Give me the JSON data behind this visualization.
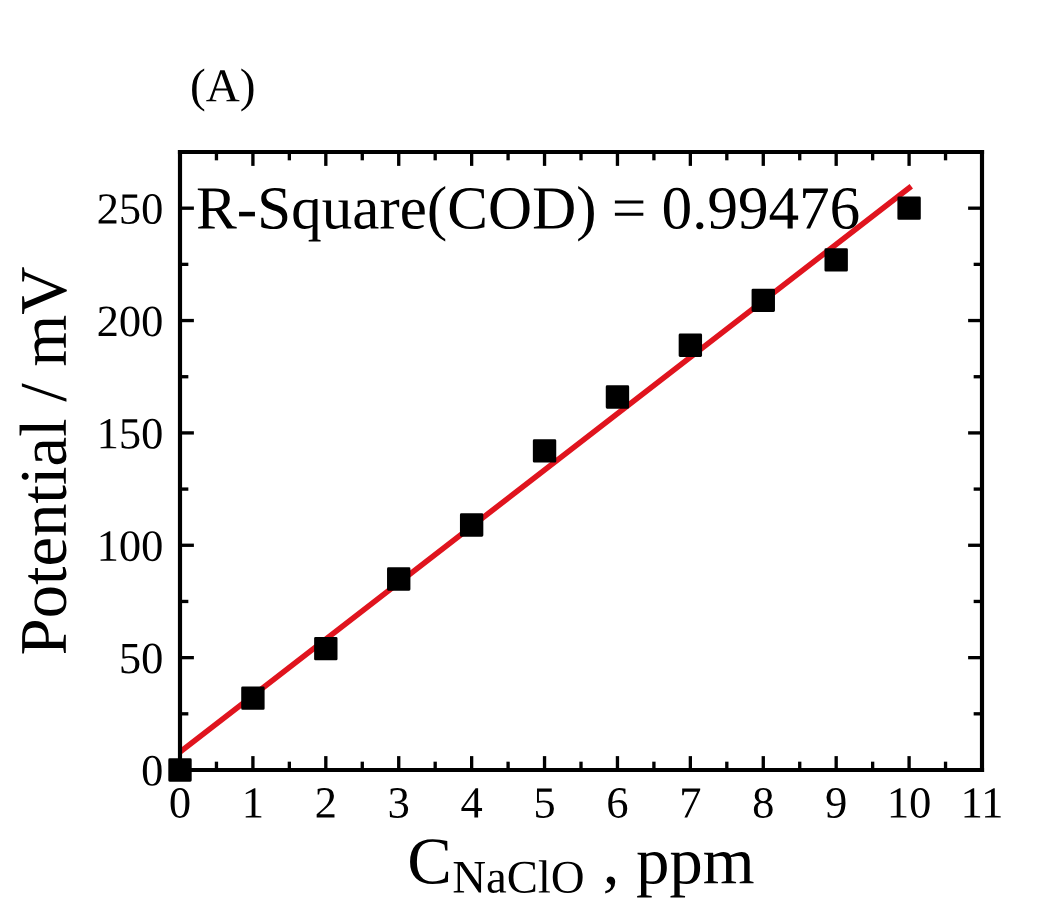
{
  "chart_data": {
    "type": "scatter",
    "title": "(A)",
    "xlabel": "C$_{NaClO}$ , ppm",
    "ylabel": "Potential / mV",
    "annotations": [
      "R-Square(COD) = 0.99476"
    ],
    "x": [
      0,
      1,
      2,
      3,
      4,
      5,
      6,
      7,
      8,
      9,
      10
    ],
    "series": [
      {
        "color": "#000000",
        "marker": "square",
        "values": [
          0,
          32,
          54,
          85,
          109,
          142,
          166,
          189,
          209,
          227,
          250
        ]
      },
      {
        "type": "line",
        "color": "#e0141e",
        "marker": "none",
        "line_style": "solid",
        "x": [
          0,
          10
        ],
        "values": [
          8,
          259
        ]
      }
    ],
    "xlim": [
      0,
      11
    ],
    "ylim": [
      0,
      275
    ],
    "xticks": [
      0,
      {
        "value": 0.5,
        "label": null
      },
      1,
      {
        "value": 1.5,
        "label": null
      },
      2,
      {
        "value": 2.5,
        "label": null
      },
      3,
      {
        "value": 3.5,
        "label": null
      },
      4,
      {
        "value": 4.5,
        "label": null
      },
      5,
      {
        "value": 5.5,
        "label": null
      },
      6,
      {
        "value": 6.5,
        "label": null
      },
      7,
      {
        "value": 7.5,
        "label": null
      },
      8,
      {
        "value": 8.5,
        "label": null
      },
      9,
      {
        "value": 9.5,
        "label": null
      },
      10,
      {
        "value": 10.5,
        "label": null
      },
      11
    ],
    "yticks": [
      0,
      {
        "value": 25,
        "label": null
      },
      50,
      {
        "value": 75,
        "label": null
      },
      100,
      {
        "value": 125,
        "label": null
      },
      150,
      {
        "value": 175,
        "label": null
      },
      200,
      {
        "value": 225,
        "label": null
      },
      250
    ],
    "grid": false,
    "legend": false
  }
}
